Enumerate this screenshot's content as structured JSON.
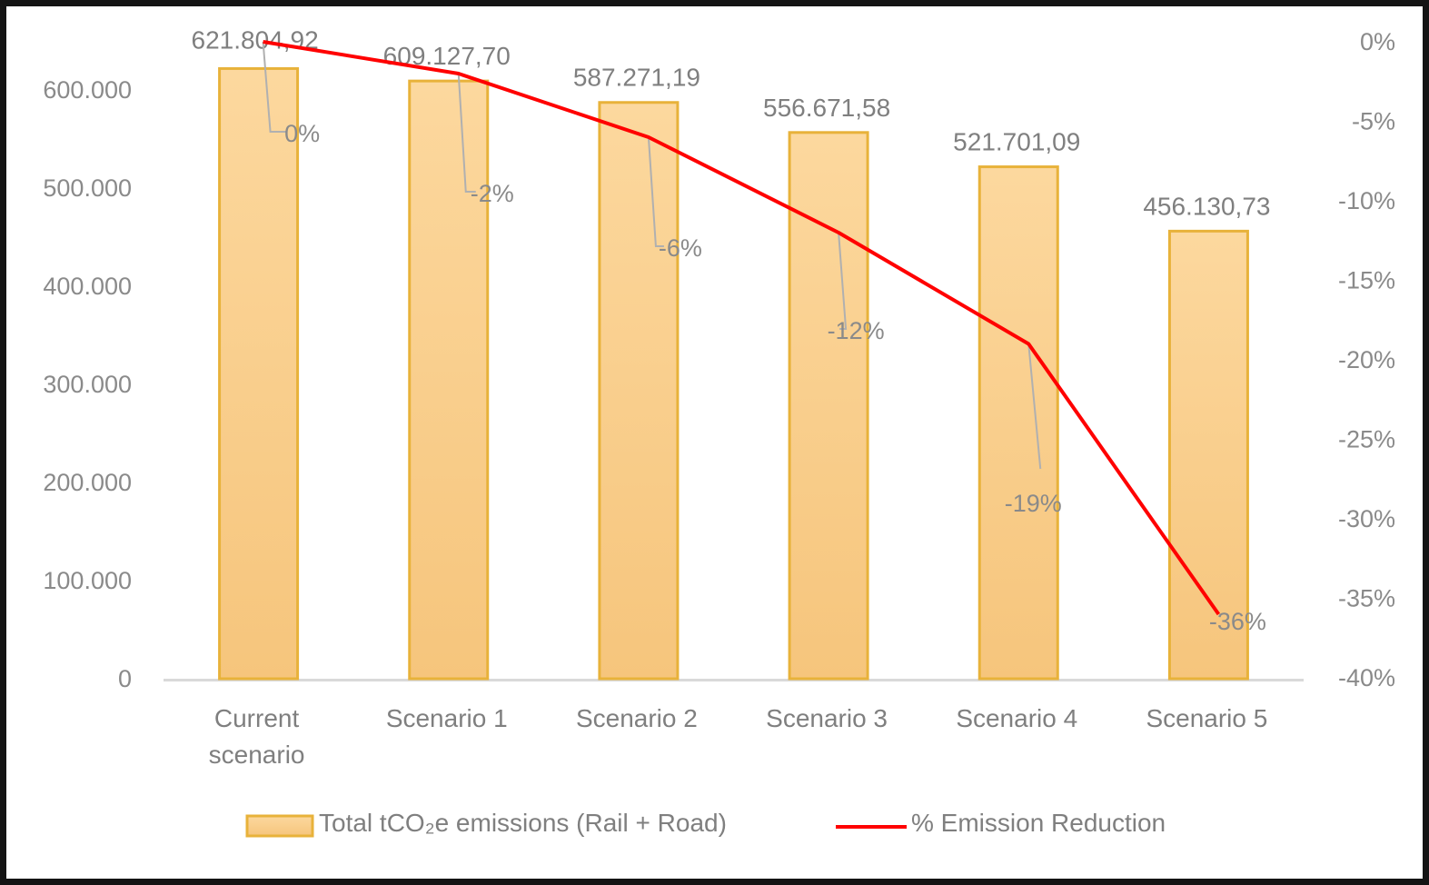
{
  "chart_data": {
    "type": "bar",
    "title": "",
    "xlabel": "",
    "ylabel": "",
    "y2label": "",
    "categories": [
      [
        "Current",
        "scenario"
      ],
      [
        "Scenario 1"
      ],
      [
        "Scenario 2"
      ],
      [
        "Scenario 3"
      ],
      [
        "Scenario 4"
      ],
      [
        "Scenario 5"
      ]
    ],
    "ylim": [
      0,
      600000
    ],
    "y2lim": [
      -0.4,
      0
    ],
    "yticks": [
      {
        "value": 0,
        "label": "0"
      },
      {
        "value": 100000,
        "label": "100.000"
      },
      {
        "value": 200000,
        "label": "200.000"
      },
      {
        "value": 300000,
        "label": "300.000"
      },
      {
        "value": 400000,
        "label": "400.000"
      },
      {
        "value": 500000,
        "label": "500.000"
      },
      {
        "value": 600000,
        "label": "600.000"
      }
    ],
    "y2ticks": [
      {
        "value": 0,
        "label": "0%"
      },
      {
        "value": -0.05,
        "label": "-5%"
      },
      {
        "value": -0.1,
        "label": "-10%"
      },
      {
        "value": -0.15,
        "label": "-15%"
      },
      {
        "value": -0.2,
        "label": "-20%"
      },
      {
        "value": -0.25,
        "label": "-25%"
      },
      {
        "value": -0.3,
        "label": "-30%"
      },
      {
        "value": -0.35,
        "label": "-35%"
      },
      {
        "value": -0.4,
        "label": "-40%"
      }
    ],
    "series": [
      {
        "name": "Total tCO₂e emissions (Rail + Road)",
        "type": "bar",
        "axis": "left",
        "color": "#FAD193",
        "border": "#E8B23A",
        "values": [
          621804.92,
          609127.7,
          587271.19,
          556671.58,
          521701.09,
          456130.73
        ],
        "labels": [
          "621.804,92",
          "609.127,70",
          "587.271,19",
          "556.671,58",
          "521.701,09",
          "456.130,73"
        ]
      },
      {
        "name": "% Emission Reduction",
        "type": "line",
        "axis": "right",
        "color": "#FF0000",
        "values": [
          0,
          -0.02,
          -0.06,
          -0.12,
          -0.19,
          -0.36
        ],
        "labels": [
          "0%",
          "-2%",
          "-6%",
          "-12%",
          "-19%",
          "-36%"
        ]
      }
    ],
    "legend": {
      "position": "bottom",
      "items": [
        "Total tCO₂e emissions (Rail + Road)",
        "% Emission Reduction"
      ]
    },
    "grid": false
  }
}
